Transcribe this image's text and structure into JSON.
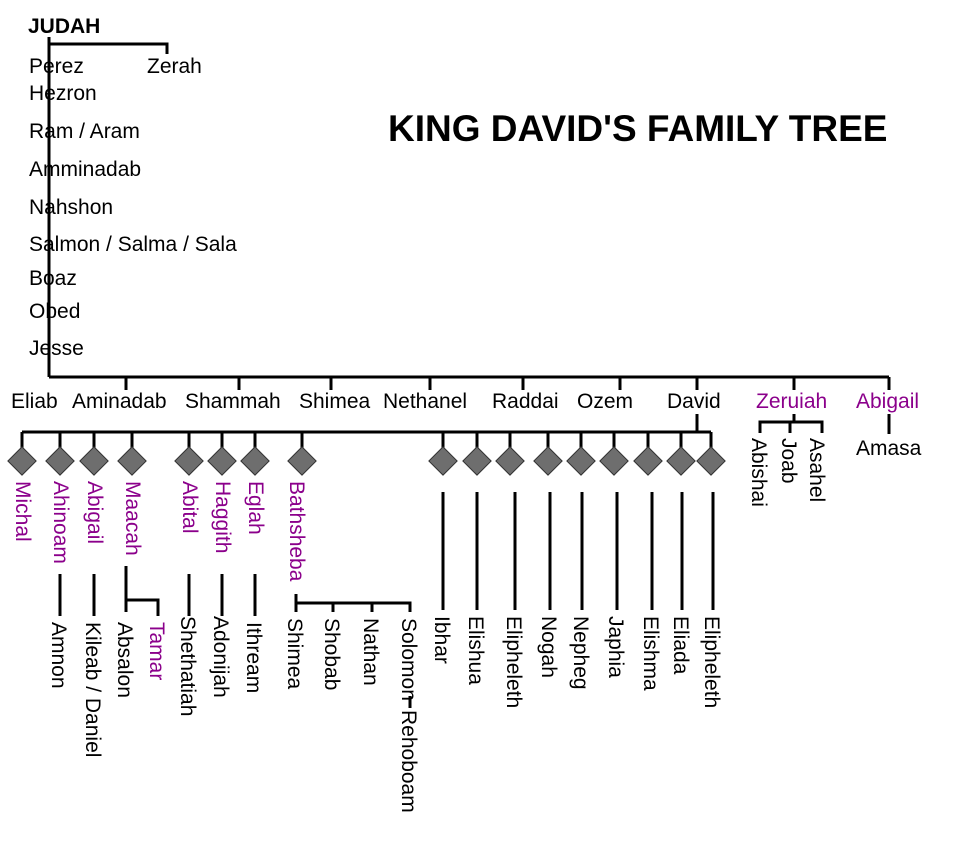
{
  "title": "KING DAVID'S FAMILY TREE",
  "ancestors": {
    "root": "JUDAH",
    "judah_sons": [
      "Perez",
      "Zerah"
    ],
    "line": [
      "Hezron",
      "Ram / Aram",
      "Amminadab",
      "Nahshon",
      "Salmon / Salma / Sala",
      "Boaz",
      "Obed",
      "Jesse"
    ]
  },
  "jesse_children": [
    {
      "name": "Eliab",
      "female": false
    },
    {
      "name": "Aminadab",
      "female": false
    },
    {
      "name": "Shammah",
      "female": false
    },
    {
      "name": "Shimea",
      "female": false
    },
    {
      "name": "Nethanel",
      "female": false
    },
    {
      "name": "Raddai",
      "female": false
    },
    {
      "name": "Ozem",
      "female": false
    },
    {
      "name": "David",
      "female": false
    },
    {
      "name": "Zeruiah",
      "female": true
    },
    {
      "name": "Abigail",
      "female": true
    }
  ],
  "zeruiah_sons": [
    "Abishai",
    "Joab",
    "Asahel"
  ],
  "abigail_son": "Amasa",
  "david_wives": [
    "Michal",
    "Ahinoam",
    "Abigail",
    "Maacah",
    "Abital",
    "Haggith",
    "Eglah",
    "Bathsheba"
  ],
  "david_children": {
    "Amnon": "Amnon",
    "Kileab": "Kileab / Daniel",
    "Absalon": "Absalon",
    "Tamar": "Tamar",
    "Shethatiah": "Shethatiah",
    "Adonijah": "Adonijah",
    "Ithream": "Ithream",
    "bathsheba_sons": [
      "Shimea",
      "Shobab",
      "Nathan",
      "Solomon"
    ],
    "Rehoboam": "Rehoboam",
    "concubine_sons": [
      "Ibhar",
      "Elishua",
      "Elipheleth",
      "Nogah",
      "Nepheg",
      "Japhia",
      "Elishma",
      "Eliada",
      "Elipheleth"
    ]
  },
  "colors": {
    "male": "#000000",
    "female": "#8b008b",
    "diamond": "#6e6e6e"
  }
}
